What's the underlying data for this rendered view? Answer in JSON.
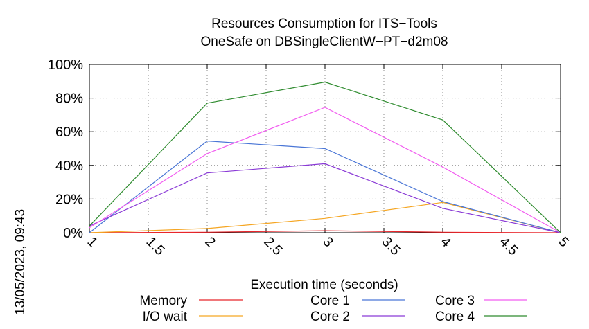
{
  "chart_data": {
    "type": "line",
    "title": [
      "Resources Consumption for ITS−Tools",
      "OneSafe on DBSingleClientW−PT−d2m08"
    ],
    "xlabel": "Execution time (seconds)",
    "ylabel": "",
    "side_label": "13/05/2023, 09:43",
    "xlim": [
      1,
      5
    ],
    "ylim": [
      0,
      100
    ],
    "x_ticks": [
      1,
      1.5,
      2,
      2.5,
      3,
      3.5,
      4,
      4.5,
      5
    ],
    "x_tick_labels": [
      "1",
      "1.5",
      "2",
      "2.5",
      "3",
      "3.5",
      "4",
      "4.5",
      "5"
    ],
    "y_ticks": [
      0,
      20,
      40,
      60,
      80,
      100
    ],
    "y_tick_labels": [
      "0%",
      "20%",
      "40%",
      "60%",
      "80%",
      "100%"
    ],
    "grid": true,
    "legend_position": "bottom",
    "x": [
      1,
      2,
      3,
      4,
      5
    ],
    "series": [
      {
        "name": "Memory",
        "color": "#e8262b",
        "values": [
          0,
          0.3,
          1.2,
          0.3,
          0
        ]
      },
      {
        "name": "I/O wait",
        "color": "#f5a623",
        "values": [
          0,
          2.5,
          8.5,
          18,
          0
        ]
      },
      {
        "name": "Core 1",
        "color": "#4a76d6",
        "values": [
          0,
          54.5,
          50,
          18.5,
          0
        ]
      },
      {
        "name": "Core 2",
        "color": "#8a3ad6",
        "values": [
          4,
          35.5,
          41,
          14.5,
          0
        ]
      },
      {
        "name": "Core 3",
        "color": "#f25cf0",
        "values": [
          3,
          47,
          74.5,
          39,
          0
        ]
      },
      {
        "name": "Core 4",
        "color": "#2e8b2e",
        "values": [
          4,
          77,
          89.5,
          67,
          0
        ]
      }
    ]
  }
}
